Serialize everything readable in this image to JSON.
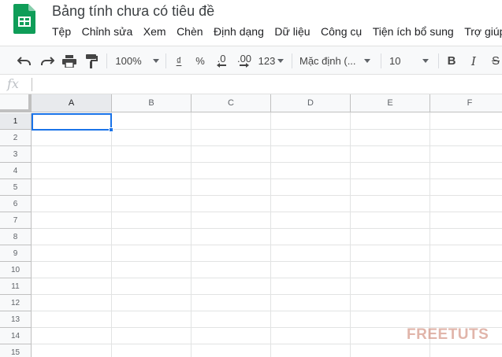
{
  "app": {
    "title": "Bảng tính chưa có tiêu đề",
    "logo_icon": "sheets-logo-icon",
    "brand_color": "#0f9d58"
  },
  "menu": [
    "Tệp",
    "Chỉnh sửa",
    "Xem",
    "Chèn",
    "Định dạng",
    "Dữ liệu",
    "Công cụ",
    "Tiện ích bổ sung",
    "Trợ giúp"
  ],
  "toolbar": {
    "zoom": "100%",
    "currency": "₫",
    "percent": "%",
    "decrease_decimal": ".0",
    "increase_decimal": ".00",
    "more_formats": "123",
    "font": "Mặc định (...",
    "font_size": "10",
    "bold": "B",
    "italic": "I",
    "strike": "S"
  },
  "formula_bar": {
    "fx_label": "fx",
    "value": ""
  },
  "grid": {
    "columns": [
      "A",
      "B",
      "C",
      "D",
      "E",
      "F"
    ],
    "rows": [
      "1",
      "2",
      "3",
      "4",
      "5",
      "6",
      "7",
      "8",
      "9",
      "10",
      "11",
      "12",
      "13",
      "14",
      "15"
    ],
    "selected_cell": "A1",
    "selection_color": "#1a73e8"
  },
  "watermark": {
    "text_a": "FREE",
    "text_b": "TUTS"
  }
}
